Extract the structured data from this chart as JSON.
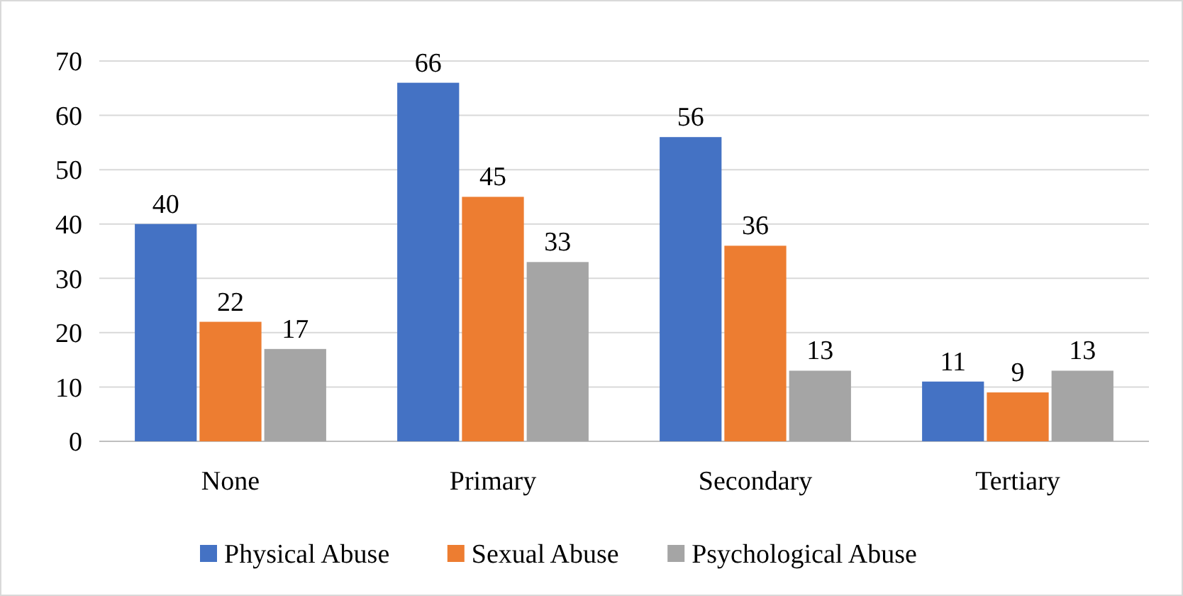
{
  "chart_data": {
    "type": "bar",
    "categories": [
      "None",
      "Primary",
      "Secondary",
      "Tertiary"
    ],
    "series": [
      {
        "name": "Physical Abuse",
        "color": "#4472c4",
        "values": [
          40,
          66,
          56,
          11
        ]
      },
      {
        "name": "Sexual Abuse",
        "color": "#ed7d31",
        "values": [
          22,
          45,
          36,
          9
        ]
      },
      {
        "name": "Psychological Abuse",
        "color": "#a5a5a5",
        "values": [
          17,
          33,
          13,
          13
        ]
      }
    ],
    "ylim": [
      0,
      70
    ],
    "yticks": [
      0,
      10,
      20,
      30,
      40,
      50,
      60,
      70
    ],
    "grid": "y",
    "data_labels": true,
    "legend": "bottom"
  }
}
